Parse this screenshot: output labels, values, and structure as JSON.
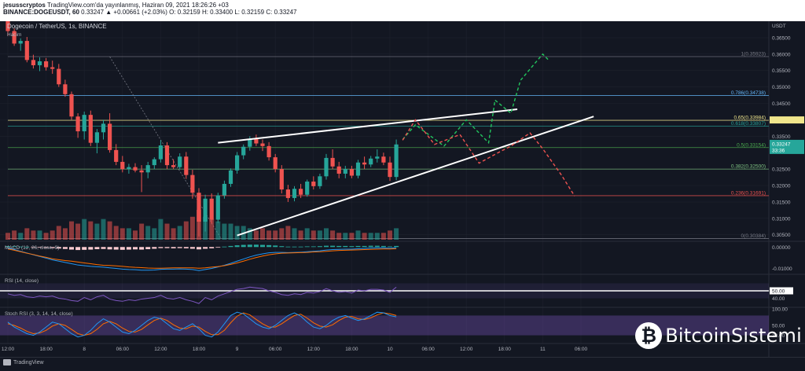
{
  "header": {
    "line1_user": "jesusscryptos",
    "line1_rest": "TradingView.com'da yayınlanmış, Haziran 09, 2021 18:26:26 +03",
    "line2_symbol": "BINANCE:DOGEUSDT, 60",
    "line2_values": "0.33247 ▲ +0.00661 (+2.03%) O: 0.32159 H: 0.33400 L: 0.32159 C: 0.33247"
  },
  "legend": {
    "title": "Dogecoin / TetherUS, 1s, BINANCE",
    "volume_label": "Hacim"
  },
  "footer": {
    "platform": "TradingView",
    "brand": "BitcoinSistemi",
    "brand_logo_glyph": "₿"
  },
  "colors": {
    "up": "#26a69a",
    "down": "#ef5350",
    "background": "#131722",
    "grid": "#1e222d"
  },
  "chart_data": [
    {
      "type": "candlestick",
      "title": "Dogecoin / TetherUS, 1s, BINANCE",
      "currency_label": "USDT",
      "ylim": [
        0.3035,
        0.37
      ],
      "y_ticks": [
        "0.36500",
        "0.36000",
        "0.35500",
        "0.35000",
        "0.34500",
        "0.34000",
        "0.33500",
        "0.32500",
        "0.32000",
        "0.31500",
        "0.31000",
        "0.30500"
      ],
      "x_ticks": [
        "12:00",
        "18:00",
        "8",
        "06:00",
        "12:00",
        "18:00",
        "9",
        "06:00",
        "12:00",
        "18:00",
        "10",
        "06:00",
        "12:00",
        "18:00",
        "11",
        "06:00"
      ],
      "x_tick_hours": [
        0,
        6,
        12,
        18,
        24,
        30,
        36,
        42,
        48,
        54,
        60,
        66,
        72,
        78,
        84,
        90
      ],
      "last_price": "0.33247",
      "countdown": "33:36",
      "candles": [
        {
          "o": 0.37,
          "h": 0.3712,
          "l": 0.3655,
          "c": 0.367
        },
        {
          "o": 0.367,
          "h": 0.3678,
          "l": 0.3625,
          "c": 0.3632
        },
        {
          "o": 0.3632,
          "h": 0.3648,
          "l": 0.361,
          "c": 0.364
        },
        {
          "o": 0.364,
          "h": 0.3652,
          "l": 0.3575,
          "c": 0.3582
        },
        {
          "o": 0.3582,
          "h": 0.3598,
          "l": 0.3556,
          "c": 0.3566
        },
        {
          "o": 0.3566,
          "h": 0.359,
          "l": 0.3548,
          "c": 0.3578
        },
        {
          "o": 0.3578,
          "h": 0.3588,
          "l": 0.355,
          "c": 0.356
        },
        {
          "o": 0.356,
          "h": 0.358,
          "l": 0.354,
          "c": 0.3555
        },
        {
          "o": 0.3555,
          "h": 0.357,
          "l": 0.35,
          "c": 0.3508
        },
        {
          "o": 0.3508,
          "h": 0.3522,
          "l": 0.347,
          "c": 0.3478
        },
        {
          "o": 0.3478,
          "h": 0.3486,
          "l": 0.34,
          "c": 0.341
        },
        {
          "o": 0.341,
          "h": 0.342,
          "l": 0.3345,
          "c": 0.3365
        },
        {
          "o": 0.3365,
          "h": 0.3425,
          "l": 0.334,
          "c": 0.3415
        },
        {
          "o": 0.3415,
          "h": 0.3428,
          "l": 0.332,
          "c": 0.333
        },
        {
          "o": 0.333,
          "h": 0.3372,
          "l": 0.3298,
          "c": 0.3362
        },
        {
          "o": 0.3362,
          "h": 0.34,
          "l": 0.334,
          "c": 0.3388
        },
        {
          "o": 0.3388,
          "h": 0.342,
          "l": 0.33,
          "c": 0.3308
        },
        {
          "o": 0.3308,
          "h": 0.3326,
          "l": 0.3262,
          "c": 0.3272
        },
        {
          "o": 0.3272,
          "h": 0.329,
          "l": 0.324,
          "c": 0.325
        },
        {
          "o": 0.325,
          "h": 0.3266,
          "l": 0.3236,
          "c": 0.3256
        },
        {
          "o": 0.3256,
          "h": 0.3268,
          "l": 0.324,
          "c": 0.3246
        },
        {
          "o": 0.3246,
          "h": 0.3262,
          "l": 0.318,
          "c": 0.324
        },
        {
          "o": 0.324,
          "h": 0.3272,
          "l": 0.3222,
          "c": 0.3262
        },
        {
          "o": 0.3262,
          "h": 0.3286,
          "l": 0.325,
          "c": 0.328
        },
        {
          "o": 0.328,
          "h": 0.3338,
          "l": 0.327,
          "c": 0.3322
        },
        {
          "o": 0.3322,
          "h": 0.3332,
          "l": 0.325,
          "c": 0.3262
        },
        {
          "o": 0.3262,
          "h": 0.328,
          "l": 0.325,
          "c": 0.3256
        },
        {
          "o": 0.3256,
          "h": 0.3298,
          "l": 0.325,
          "c": 0.3288
        },
        {
          "o": 0.3288,
          "h": 0.3302,
          "l": 0.322,
          "c": 0.3232
        },
        {
          "o": 0.3232,
          "h": 0.3248,
          "l": 0.316,
          "c": 0.3178
        },
        {
          "o": 0.3178,
          "h": 0.3192,
          "l": 0.3045,
          "c": 0.309
        },
        {
          "o": 0.309,
          "h": 0.3172,
          "l": 0.306,
          "c": 0.316
        },
        {
          "o": 0.316,
          "h": 0.3176,
          "l": 0.3085,
          "c": 0.3096
        },
        {
          "o": 0.3096,
          "h": 0.3178,
          "l": 0.3086,
          "c": 0.317
        },
        {
          "o": 0.317,
          "h": 0.3215,
          "l": 0.316,
          "c": 0.3205
        },
        {
          "o": 0.3205,
          "h": 0.3252,
          "l": 0.3196,
          "c": 0.3246
        },
        {
          "o": 0.3246,
          "h": 0.3302,
          "l": 0.3236,
          "c": 0.3292
        },
        {
          "o": 0.3292,
          "h": 0.3325,
          "l": 0.328,
          "c": 0.3318
        },
        {
          "o": 0.3318,
          "h": 0.335,
          "l": 0.3306,
          "c": 0.3342
        },
        {
          "o": 0.3342,
          "h": 0.3355,
          "l": 0.332,
          "c": 0.3328
        },
        {
          "o": 0.3328,
          "h": 0.334,
          "l": 0.3305,
          "c": 0.332
        },
        {
          "o": 0.332,
          "h": 0.3332,
          "l": 0.3276,
          "c": 0.3286
        },
        {
          "o": 0.3286,
          "h": 0.3296,
          "l": 0.324,
          "c": 0.325
        },
        {
          "o": 0.325,
          "h": 0.3262,
          "l": 0.3176,
          "c": 0.3188
        },
        {
          "o": 0.3188,
          "h": 0.3202,
          "l": 0.315,
          "c": 0.3162
        },
        {
          "o": 0.3162,
          "h": 0.3198,
          "l": 0.3152,
          "c": 0.319
        },
        {
          "o": 0.319,
          "h": 0.3205,
          "l": 0.3162,
          "c": 0.3172
        },
        {
          "o": 0.3172,
          "h": 0.3218,
          "l": 0.3166,
          "c": 0.3212
        },
        {
          "o": 0.3212,
          "h": 0.3228,
          "l": 0.3188,
          "c": 0.3198
        },
        {
          "o": 0.3198,
          "h": 0.3236,
          "l": 0.319,
          "c": 0.3228
        },
        {
          "o": 0.3228,
          "h": 0.3296,
          "l": 0.3218,
          "c": 0.3284
        },
        {
          "o": 0.3284,
          "h": 0.331,
          "l": 0.325,
          "c": 0.3258
        },
        {
          "o": 0.3258,
          "h": 0.3272,
          "l": 0.3222,
          "c": 0.3236
        },
        {
          "o": 0.3236,
          "h": 0.326,
          "l": 0.3222,
          "c": 0.325
        },
        {
          "o": 0.325,
          "h": 0.326,
          "l": 0.3222,
          "c": 0.323
        },
        {
          "o": 0.323,
          "h": 0.3278,
          "l": 0.3222,
          "c": 0.327
        },
        {
          "o": 0.327,
          "h": 0.3288,
          "l": 0.325,
          "c": 0.3264
        },
        {
          "o": 0.3264,
          "h": 0.329,
          "l": 0.3256,
          "c": 0.3282
        },
        {
          "o": 0.3282,
          "h": 0.331,
          "l": 0.327,
          "c": 0.3288
        },
        {
          "o": 0.3288,
          "h": 0.33,
          "l": 0.3262,
          "c": 0.327
        },
        {
          "o": 0.327,
          "h": 0.3288,
          "l": 0.3214,
          "c": 0.3226
        },
        {
          "o": 0.3226,
          "h": 0.334,
          "l": 0.3216,
          "c": 0.3325
        }
      ],
      "volume": [
        3,
        4,
        3,
        5,
        4,
        4,
        3,
        4,
        6,
        5,
        8,
        7,
        9,
        8,
        7,
        9,
        8,
        6,
        5,
        5,
        4,
        7,
        6,
        5,
        9,
        7,
        5,
        6,
        8,
        10,
        13,
        10,
        9,
        8,
        7,
        7,
        6,
        6,
        5,
        4,
        5,
        4,
        4,
        5,
        6,
        5,
        4,
        5,
        4,
        4,
        5,
        4,
        3,
        3,
        3,
        4,
        3,
        3,
        3,
        3,
        4,
        5
      ],
      "fib_levels": [
        {
          "label": "1(0.35923)",
          "price": 0.35923,
          "color": "#787b86"
        },
        {
          "label": "0.786(0.34738)",
          "price": 0.34738,
          "color": "#64b5f6"
        },
        {
          "label": "0.65(0.33984)",
          "price": 0.33984,
          "color": "#f0e68c"
        },
        {
          "label": "0.618(0.33807)",
          "price": 0.33807,
          "color": "#26a69a"
        },
        {
          "label": "0.5(0.33154)",
          "price": 0.33154,
          "color": "#4caf50"
        },
        {
          "label": "0.382(0.32500)",
          "price": 0.325,
          "color": "#81c784"
        },
        {
          "label": "0.236(0.31691)",
          "price": 0.31691,
          "color": "#ef5350"
        },
        {
          "label": "0(0.30384)",
          "price": 0.30384,
          "color": "#787b86"
        }
      ],
      "trendlines": [
        {
          "name": "upper-wedge",
          "x": [
            33,
            80
          ],
          "y": [
            0.333,
            0.3432
          ]
        },
        {
          "name": "lower-wedge",
          "x": [
            36,
            92
          ],
          "y": [
            0.3048,
            0.341
          ]
        }
      ],
      "scenarios": [
        {
          "name": "bullish",
          "color": "#22c55e",
          "x": [
            62,
            64,
            68.5,
            72,
            75.5,
            76.5,
            79,
            80.5,
            84,
            85
          ],
          "y": [
            0.334,
            0.3385,
            0.332,
            0.34,
            0.333,
            0.346,
            0.342,
            0.352,
            0.36,
            0.358
          ]
        },
        {
          "name": "bearish",
          "color": "#ef5350",
          "x": [
            62,
            64,
            67,
            71,
            74,
            77,
            79,
            82,
            84,
            87,
            89
          ],
          "y": [
            0.3338,
            0.34,
            0.3325,
            0.3355,
            0.3268,
            0.33,
            0.332,
            0.336,
            0.3312,
            0.323,
            0.3168
          ]
        }
      ]
    },
    {
      "type": "histogram",
      "title": "MACD (12, 26, close, 9)",
      "y_ticks": [
        "0.00000",
        "-0.01000"
      ],
      "ylim": [
        -0.012,
        0.0012
      ],
      "histogram": [
        0.0004,
        0.0003,
        0.0002,
        0.0001,
        -0.0001,
        -0.0002,
        -0.0004,
        -0.0005,
        -0.0007,
        -0.0009,
        -0.0012,
        -0.0014,
        -0.0013,
        -0.0012,
        -0.001,
        -0.0009,
        -0.0011,
        -0.0012,
        -0.0013,
        -0.0012,
        -0.0011,
        -0.0012,
        -0.001,
        -0.0008,
        -0.0005,
        -0.0005,
        -0.0006,
        -0.0005,
        -0.0006,
        -0.0008,
        -0.0011,
        -0.0008,
        -0.0006,
        -0.0002,
        0.0002,
        0.0005,
        0.0008,
        0.001,
        0.0011,
        0.0011,
        0.001,
        0.0009,
        0.0007,
        0.0004,
        0.0002,
        0.0002,
        0.0002,
        0.0003,
        0.0003,
        0.0004,
        0.0006,
        0.0006,
        0.0005,
        0.0005,
        0.0004,
        0.0005,
        0.0005,
        0.0006,
        0.0006,
        0.0005,
        0.0003,
        0.0005
      ],
      "macd_line": [
        -0.0005,
        -0.0012,
        -0.002,
        -0.0028,
        -0.0036,
        -0.0044,
        -0.0052,
        -0.006,
        -0.0066,
        -0.0072,
        -0.0078,
        -0.0084,
        -0.0087,
        -0.009,
        -0.0092,
        -0.0094,
        -0.0097,
        -0.01,
        -0.0103,
        -0.0105,
        -0.0106,
        -0.0108,
        -0.0108,
        -0.0107,
        -0.0104,
        -0.0103,
        -0.0103,
        -0.0102,
        -0.0103,
        -0.0105,
        -0.011,
        -0.0105,
        -0.01,
        -0.0093,
        -0.0085,
        -0.0076,
        -0.0066,
        -0.0056,
        -0.0046,
        -0.0038,
        -0.0032,
        -0.0027,
        -0.0025,
        -0.0025,
        -0.0026,
        -0.0025,
        -0.0024,
        -0.0022,
        -0.002,
        -0.0018,
        -0.0014,
        -0.0012,
        -0.0011,
        -0.001,
        -0.001,
        -0.0008,
        -0.0007,
        -0.0005,
        -0.0004,
        -0.0004,
        -0.0006,
        -0.0003
      ],
      "signal_line": [
        -0.0009,
        -0.0015,
        -0.0022,
        -0.0029,
        -0.0035,
        -0.0042,
        -0.0048,
        -0.0055,
        -0.0059,
        -0.0063,
        -0.0066,
        -0.007,
        -0.0074,
        -0.0078,
        -0.0082,
        -0.0085,
        -0.0086,
        -0.0088,
        -0.009,
        -0.0093,
        -0.0095,
        -0.0096,
        -0.0098,
        -0.0099,
        -0.0099,
        -0.0098,
        -0.0097,
        -0.0097,
        -0.0097,
        -0.0097,
        -0.0099,
        -0.0097,
        -0.0094,
        -0.0091,
        -0.0087,
        -0.0081,
        -0.0074,
        -0.0066,
        -0.0057,
        -0.0049,
        -0.0042,
        -0.0036,
        -0.0032,
        -0.0029,
        -0.0028,
        -0.0027,
        -0.0026,
        -0.0025,
        -0.0023,
        -0.0022,
        -0.002,
        -0.0018,
        -0.0016,
        -0.0015,
        -0.0014,
        -0.0013,
        -0.0012,
        -0.0011,
        -0.001,
        -0.0009,
        -0.0009,
        -0.0008
      ]
    },
    {
      "type": "line",
      "title": "RSI (14, close)",
      "y_ticks": [
        "50.00",
        "40.00"
      ],
      "ylim": [
        30,
        70
      ],
      "values": [
        46,
        44,
        45,
        42,
        41,
        43,
        42,
        43,
        40,
        39,
        37,
        36,
        41,
        38,
        42,
        44,
        39,
        37,
        36,
        38,
        37,
        39,
        40,
        41,
        44,
        40,
        39,
        41,
        38,
        36,
        33,
        41,
        38,
        43,
        46,
        49,
        52,
        53,
        55,
        54,
        53,
        50,
        48,
        45,
        44,
        46,
        45,
        48,
        47,
        49,
        53,
        50,
        48,
        49,
        47,
        51,
        50,
        52,
        52,
        51,
        48,
        55
      ]
    },
    {
      "type": "line",
      "title": "Stoch RSI (3, 3, 14, 14, close)",
      "y_ticks": [
        "100.00",
        "50.00",
        "20.00"
      ],
      "ylim": [
        0,
        100
      ],
      "k_line": [
        60,
        45,
        35,
        25,
        20,
        30,
        45,
        60,
        55,
        40,
        25,
        15,
        20,
        35,
        55,
        70,
        60,
        45,
        30,
        25,
        35,
        50,
        65,
        75,
        70,
        55,
        40,
        35,
        45,
        55,
        40,
        20,
        15,
        30,
        55,
        80,
        90,
        85,
        70,
        55,
        45,
        40,
        50,
        65,
        80,
        88,
        78,
        60,
        45,
        40,
        50,
        65,
        75,
        80,
        72,
        65,
        70,
        80,
        90,
        88,
        80,
        76
      ],
      "d_line": [
        55,
        50,
        42,
        32,
        25,
        27,
        35,
        48,
        55,
        50,
        38,
        25,
        20,
        25,
        38,
        55,
        62,
        55,
        42,
        32,
        30,
        38,
        52,
        65,
        72,
        65,
        52,
        42,
        40,
        48,
        45,
        32,
        22,
        22,
        35,
        58,
        78,
        88,
        82,
        68,
        55,
        45,
        45,
        55,
        68,
        80,
        84,
        72,
        58,
        48,
        45,
        52,
        65,
        75,
        77,
        70,
        68,
        73,
        82,
        88,
        85,
        80
      ]
    }
  ]
}
